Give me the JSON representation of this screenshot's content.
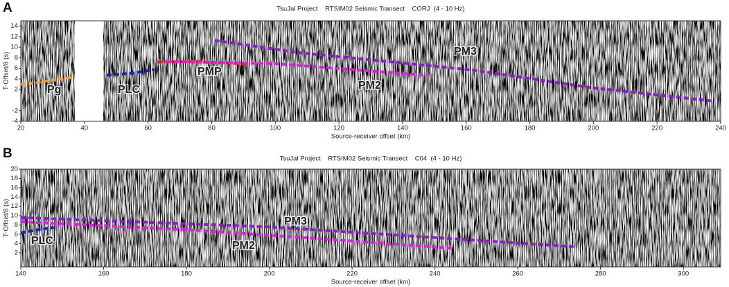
{
  "chart_data": [
    {
      "type": "line",
      "panel": "A",
      "title": "TsuJal Project    RTSIM02 Seismic Transect    CORJ  (4 - 10 Hz)",
      "x_label": "Source-receiver offset (km)",
      "y_label": "T-Offset/8 (s)",
      "xlim": [
        20,
        240
      ],
      "ylim": [
        -4,
        15
      ],
      "xticks": [
        20,
        40,
        60,
        80,
        100,
        120,
        140,
        160,
        180,
        200,
        220,
        240
      ],
      "yticks": [
        -4,
        -2,
        2,
        4,
        6,
        8,
        10,
        12,
        14
      ],
      "series": [
        {
          "name": "Pg",
          "color": "#f39c3c",
          "x": [
            20,
            25,
            30,
            37
          ],
          "values": [
            3,
            3.3,
            3.8,
            4.4
          ]
        },
        {
          "name": "PLC",
          "color": "#1c22b8",
          "x": [
            47,
            55,
            62
          ],
          "values": [
            4.7,
            5.1,
            5.8
          ]
        },
        {
          "name": "PMP",
          "color": "#d42020",
          "x": [
            63,
            75,
            92
          ],
          "values": [
            7.2,
            7.3,
            6.8
          ]
        },
        {
          "name": "PM2",
          "color": "#e020e0",
          "x": [
            66,
            100,
            130,
            148
          ],
          "values": [
            7.3,
            6.9,
            5.5,
            4.7
          ]
        },
        {
          "name": "PM3",
          "color": "#8a1fc8",
          "x": [
            81,
            107,
            162,
            199,
            238
          ],
          "values": [
            11.3,
            9,
            5.7,
            2.4,
            -0.2
          ]
        }
      ]
    },
    {
      "type": "line",
      "panel": "B",
      "title": "TsuJal Project    RTSIM02 Seismic Transect    C04  (4 - 10 Hz)",
      "x_label": "Source-receiver offset (km)",
      "y_label": "T-Offset/8 (s)",
      "xlim": [
        140,
        309
      ],
      "ylim": [
        -1,
        20
      ],
      "xticks": [
        140,
        160,
        180,
        200,
        220,
        240,
        260,
        280,
        300
      ],
      "yticks": [
        2,
        4,
        6,
        8,
        10,
        12,
        14,
        16,
        18,
        20
      ],
      "series": [
        {
          "name": "PLC",
          "color": "#1c22b8",
          "x": [
            140,
            143,
            148
          ],
          "values": [
            6.3,
            6.8,
            7.5
          ]
        },
        {
          "name": "PM2",
          "color": "#e020e0",
          "x": [
            140,
            180,
            210,
            244
          ],
          "values": [
            8.7,
            7,
            5.2,
            3
          ]
        },
        {
          "name": "PM3",
          "color": "#8a1fc8",
          "x": [
            140,
            200,
            240,
            274
          ],
          "values": [
            9.6,
            7.6,
            5.3,
            3.3
          ]
        }
      ]
    }
  ]
}
